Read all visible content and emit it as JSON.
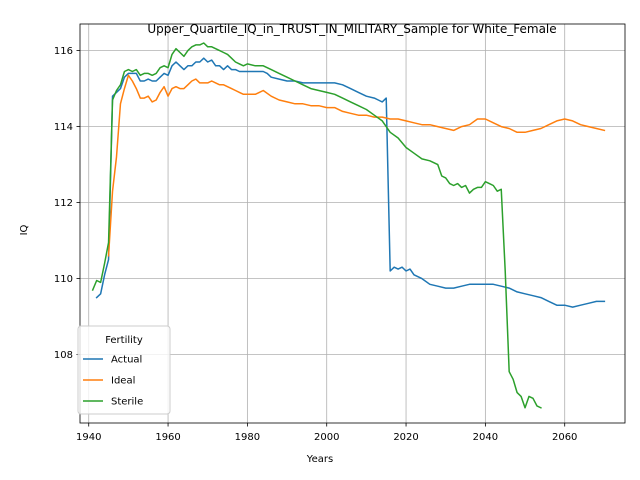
{
  "chart_data": {
    "type": "line",
    "title": "Upper_Quartile_IQ_in_TRUST_IN_MILITARY_Sample for White_Female",
    "xlabel": "Years",
    "ylabel": "IQ",
    "xlim": [
      1937.8,
      2075.2
    ],
    "ylim": [
      106.2,
      116.7
    ],
    "xticks": [
      1940,
      1960,
      1980,
      2000,
      2020,
      2040,
      2060
    ],
    "yticks": [
      108,
      110,
      112,
      114,
      116
    ],
    "grid": true,
    "legend": {
      "title": "Fertility",
      "placement": "lower-left"
    },
    "series": [
      {
        "name": "Actual",
        "color": "#1f77b4",
        "points": [
          [
            1942,
            109.5
          ],
          [
            1943,
            109.6
          ],
          [
            1944,
            110.1
          ],
          [
            1945,
            110.5
          ],
          [
            1946,
            114.8
          ],
          [
            1947,
            114.9
          ],
          [
            1948,
            115.0
          ],
          [
            1949,
            115.3
          ],
          [
            1950,
            115.4
          ],
          [
            1951,
            115.4
          ],
          [
            1952,
            115.4
          ],
          [
            1953,
            115.2
          ],
          [
            1954,
            115.2
          ],
          [
            1955,
            115.25
          ],
          [
            1956,
            115.2
          ],
          [
            1957,
            115.2
          ],
          [
            1958,
            115.3
          ],
          [
            1959,
            115.4
          ],
          [
            1960,
            115.35
          ],
          [
            1961,
            115.6
          ],
          [
            1962,
            115.7
          ],
          [
            1963,
            115.6
          ],
          [
            1964,
            115.5
          ],
          [
            1965,
            115.6
          ],
          [
            1966,
            115.6
          ],
          [
            1967,
            115.7
          ],
          [
            1968,
            115.7
          ],
          [
            1969,
            115.8
          ],
          [
            1970,
            115.7
          ],
          [
            1971,
            115.75
          ],
          [
            1972,
            115.6
          ],
          [
            1973,
            115.6
          ],
          [
            1974,
            115.5
          ],
          [
            1975,
            115.6
          ],
          [
            1976,
            115.5
          ],
          [
            1977,
            115.5
          ],
          [
            1978,
            115.45
          ],
          [
            1979,
            115.45
          ],
          [
            1980,
            115.45
          ],
          [
            1982,
            115.45
          ],
          [
            1984,
            115.45
          ],
          [
            1985,
            115.4
          ],
          [
            1986,
            115.3
          ],
          [
            1988,
            115.25
          ],
          [
            1990,
            115.2
          ],
          [
            1992,
            115.2
          ],
          [
            1994,
            115.15
          ],
          [
            1996,
            115.15
          ],
          [
            1998,
            115.15
          ],
          [
            2000,
            115.15
          ],
          [
            2002,
            115.15
          ],
          [
            2004,
            115.1
          ],
          [
            2006,
            115.0
          ],
          [
            2008,
            114.9
          ],
          [
            2010,
            114.8
          ],
          [
            2012,
            114.75
          ],
          [
            2013,
            114.7
          ],
          [
            2014,
            114.65
          ],
          [
            2015,
            114.75
          ],
          [
            2016,
            110.2
          ],
          [
            2017,
            110.3
          ],
          [
            2018,
            110.25
          ],
          [
            2019,
            110.3
          ],
          [
            2020,
            110.2
          ],
          [
            2021,
            110.25
          ],
          [
            2022,
            110.1
          ],
          [
            2024,
            110.0
          ],
          [
            2026,
            109.85
          ],
          [
            2028,
            109.8
          ],
          [
            2030,
            109.75
          ],
          [
            2032,
            109.75
          ],
          [
            2034,
            109.8
          ],
          [
            2036,
            109.85
          ],
          [
            2038,
            109.85
          ],
          [
            2040,
            109.85
          ],
          [
            2042,
            109.85
          ],
          [
            2044,
            109.8
          ],
          [
            2046,
            109.75
          ],
          [
            2048,
            109.65
          ],
          [
            2050,
            109.6
          ],
          [
            2052,
            109.55
          ],
          [
            2054,
            109.5
          ],
          [
            2056,
            109.4
          ],
          [
            2058,
            109.3
          ],
          [
            2060,
            109.3
          ],
          [
            2062,
            109.25
          ],
          [
            2064,
            109.3
          ],
          [
            2066,
            109.35
          ],
          [
            2068,
            109.4
          ],
          [
            2070,
            109.4
          ]
        ]
      },
      {
        "name": "Ideal",
        "color": "#ff7f0e",
        "points": [
          [
            1945,
            110.6
          ],
          [
            1946,
            112.3
          ],
          [
            1947,
            113.2
          ],
          [
            1948,
            114.6
          ],
          [
            1949,
            115.0
          ],
          [
            1950,
            115.35
          ],
          [
            1951,
            115.2
          ],
          [
            1952,
            115.0
          ],
          [
            1953,
            114.75
          ],
          [
            1954,
            114.75
          ],
          [
            1955,
            114.8
          ],
          [
            1956,
            114.65
          ],
          [
            1957,
            114.7
          ],
          [
            1958,
            114.9
          ],
          [
            1959,
            115.05
          ],
          [
            1960,
            114.8
          ],
          [
            1961,
            115.0
          ],
          [
            1962,
            115.05
          ],
          [
            1963,
            115.0
          ],
          [
            1964,
            115.0
          ],
          [
            1965,
            115.1
          ],
          [
            1966,
            115.2
          ],
          [
            1967,
            115.25
          ],
          [
            1968,
            115.15
          ],
          [
            1969,
            115.15
          ],
          [
            1970,
            115.15
          ],
          [
            1971,
            115.2
          ],
          [
            1972,
            115.15
          ],
          [
            1973,
            115.1
          ],
          [
            1974,
            115.1
          ],
          [
            1975,
            115.05
          ],
          [
            1976,
            115.0
          ],
          [
            1977,
            114.95
          ],
          [
            1978,
            114.9
          ],
          [
            1979,
            114.85
          ],
          [
            1980,
            114.85
          ],
          [
            1982,
            114.85
          ],
          [
            1983,
            114.9
          ],
          [
            1984,
            114.95
          ],
          [
            1986,
            114.8
          ],
          [
            1988,
            114.7
          ],
          [
            1990,
            114.65
          ],
          [
            1992,
            114.6
          ],
          [
            1994,
            114.6
          ],
          [
            1996,
            114.55
          ],
          [
            1998,
            114.55
          ],
          [
            2000,
            114.5
          ],
          [
            2002,
            114.5
          ],
          [
            2004,
            114.4
          ],
          [
            2006,
            114.35
          ],
          [
            2008,
            114.3
          ],
          [
            2010,
            114.3
          ],
          [
            2012,
            114.25
          ],
          [
            2014,
            114.25
          ],
          [
            2016,
            114.2
          ],
          [
            2018,
            114.2
          ],
          [
            2020,
            114.15
          ],
          [
            2022,
            114.1
          ],
          [
            2024,
            114.05
          ],
          [
            2026,
            114.05
          ],
          [
            2028,
            114.0
          ],
          [
            2030,
            113.95
          ],
          [
            2032,
            113.9
          ],
          [
            2034,
            114.0
          ],
          [
            2036,
            114.05
          ],
          [
            2038,
            114.2
          ],
          [
            2040,
            114.2
          ],
          [
            2042,
            114.1
          ],
          [
            2044,
            114.0
          ],
          [
            2046,
            113.95
          ],
          [
            2048,
            113.85
          ],
          [
            2050,
            113.85
          ],
          [
            2052,
            113.9
          ],
          [
            2054,
            113.95
          ],
          [
            2056,
            114.05
          ],
          [
            2058,
            114.15
          ],
          [
            2060,
            114.2
          ],
          [
            2062,
            114.15
          ],
          [
            2064,
            114.05
          ],
          [
            2066,
            114.0
          ],
          [
            2068,
            113.95
          ],
          [
            2070,
            113.9
          ]
        ]
      },
      {
        "name": "Sterile",
        "color": "#2ca02c",
        "points": [
          [
            1941,
            109.7
          ],
          [
            1942,
            109.95
          ],
          [
            1943,
            109.9
          ],
          [
            1944,
            110.4
          ],
          [
            1945,
            110.95
          ],
          [
            1946,
            114.7
          ],
          [
            1947,
            114.95
          ],
          [
            1948,
            115.1
          ],
          [
            1949,
            115.45
          ],
          [
            1950,
            115.5
          ],
          [
            1951,
            115.45
          ],
          [
            1952,
            115.5
          ],
          [
            1953,
            115.35
          ],
          [
            1954,
            115.4
          ],
          [
            1955,
            115.4
          ],
          [
            1956,
            115.35
          ],
          [
            1957,
            115.4
          ],
          [
            1958,
            115.55
          ],
          [
            1959,
            115.6
          ],
          [
            1960,
            115.55
          ],
          [
            1961,
            115.9
          ],
          [
            1962,
            116.05
          ],
          [
            1963,
            115.95
          ],
          [
            1964,
            115.85
          ],
          [
            1965,
            116.0
          ],
          [
            1966,
            116.1
          ],
          [
            1967,
            116.15
          ],
          [
            1968,
            116.15
          ],
          [
            1969,
            116.2
          ],
          [
            1970,
            116.1
          ],
          [
            1971,
            116.1
          ],
          [
            1972,
            116.05
          ],
          [
            1973,
            116.0
          ],
          [
            1974,
            115.95
          ],
          [
            1975,
            115.9
          ],
          [
            1976,
            115.8
          ],
          [
            1977,
            115.7
          ],
          [
            1978,
            115.65
          ],
          [
            1979,
            115.6
          ],
          [
            1980,
            115.65
          ],
          [
            1982,
            115.6
          ],
          [
            1984,
            115.6
          ],
          [
            1986,
            115.5
          ],
          [
            1988,
            115.4
          ],
          [
            1990,
            115.3
          ],
          [
            1992,
            115.2
          ],
          [
            1994,
            115.1
          ],
          [
            1996,
            115.0
          ],
          [
            1998,
            114.95
          ],
          [
            2000,
            114.9
          ],
          [
            2002,
            114.85
          ],
          [
            2004,
            114.75
          ],
          [
            2006,
            114.65
          ],
          [
            2008,
            114.55
          ],
          [
            2010,
            114.45
          ],
          [
            2012,
            114.3
          ],
          [
            2014,
            114.15
          ],
          [
            2016,
            113.85
          ],
          [
            2018,
            113.7
          ],
          [
            2020,
            113.45
          ],
          [
            2022,
            113.3
          ],
          [
            2024,
            113.15
          ],
          [
            2026,
            113.1
          ],
          [
            2028,
            113.0
          ],
          [
            2029,
            112.7
          ],
          [
            2030,
            112.65
          ],
          [
            2031,
            112.5
          ],
          [
            2032,
            112.45
          ],
          [
            2033,
            112.5
          ],
          [
            2034,
            112.4
          ],
          [
            2035,
            112.45
          ],
          [
            2036,
            112.25
          ],
          [
            2037,
            112.35
          ],
          [
            2038,
            112.4
          ],
          [
            2039,
            112.4
          ],
          [
            2040,
            112.55
          ],
          [
            2041,
            112.5
          ],
          [
            2042,
            112.45
          ],
          [
            2043,
            112.3
          ],
          [
            2044,
            112.35
          ],
          [
            2045,
            110.2
          ],
          [
            2046,
            107.55
          ],
          [
            2047,
            107.35
          ],
          [
            2048,
            107.0
          ],
          [
            2049,
            106.9
          ],
          [
            2050,
            106.6
          ],
          [
            2051,
            106.9
          ],
          [
            2052,
            106.85
          ],
          [
            2053,
            106.65
          ],
          [
            2054,
            106.6
          ]
        ]
      }
    ]
  }
}
